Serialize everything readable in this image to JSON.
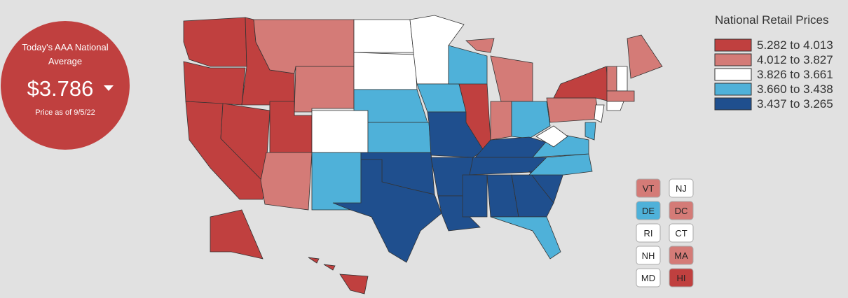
{
  "badge": {
    "title": "Today's AAA National Average",
    "price": "$3.786",
    "date_caption": "Price as of 9/5/22",
    "color": "#c0403f"
  },
  "legend": {
    "title": "National Retail Prices",
    "items": [
      {
        "label": "5.282 to 4.013",
        "color": "#c0403f"
      },
      {
        "label": "4.012 to 3.827",
        "color": "#d47b77"
      },
      {
        "label": "3.826 to 3.661",
        "color": "#ffffff"
      },
      {
        "label": "3.660 to 3.438",
        "color": "#4fb1d9"
      },
      {
        "label": "3.437 to 3.265",
        "color": "#1f4f8e"
      }
    ]
  },
  "state_boxes": [
    {
      "label": "VT",
      "color": "#d47b77"
    },
    {
      "label": "NJ",
      "color": "#ffffff"
    },
    {
      "label": "DE",
      "color": "#4fb1d9"
    },
    {
      "label": "DC",
      "color": "#d47b77"
    },
    {
      "label": "RI",
      "color": "#ffffff"
    },
    {
      "label": "CT",
      "color": "#ffffff"
    },
    {
      "label": "NH",
      "color": "#ffffff"
    },
    {
      "label": "MA",
      "color": "#d47b77"
    },
    {
      "label": "MD",
      "color": "#ffffff"
    },
    {
      "label": "HI",
      "color": "#c0403f"
    }
  ]
}
